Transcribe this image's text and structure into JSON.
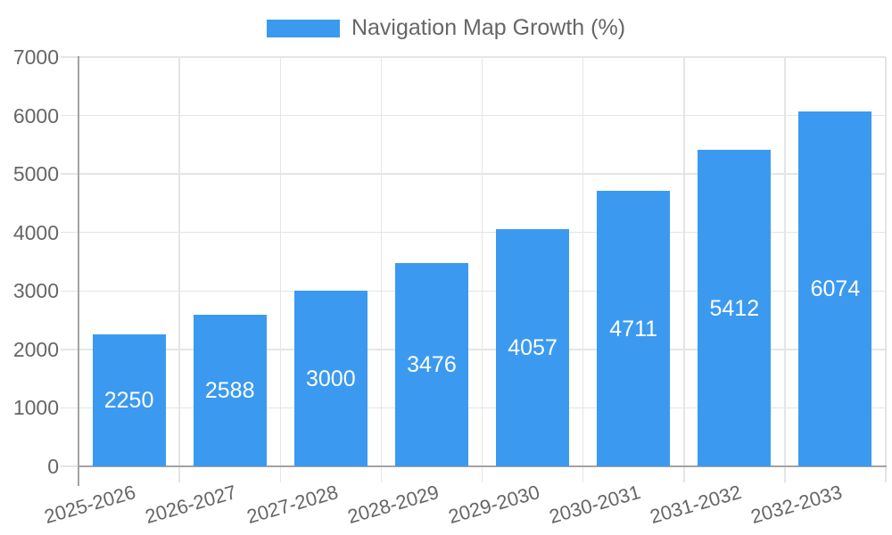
{
  "chart_data": {
    "type": "bar",
    "title": "Navigation Map Growth (%)",
    "categories": [
      "2025-2026",
      "2026-2027",
      "2027-2028",
      "2028-2029",
      "2029-2030",
      "2030-2031",
      "2031-2032",
      "2032-2033"
    ],
    "values": [
      2250,
      2588,
      3000,
      3476,
      4057,
      4711,
      5412,
      6074
    ],
    "xlabel": "",
    "ylabel": "",
    "ylim": [
      0,
      7000
    ],
    "yticks": [
      0,
      1000,
      2000,
      3000,
      4000,
      5000,
      6000,
      7000
    ],
    "grid": true,
    "legend_position": "top",
    "value_labels_position": "inside-center",
    "x_label_rotation_deg": -16,
    "colors": {
      "bar": "#3b9af0",
      "value_label": "#ffffff",
      "text": "#666666",
      "grid": "#e5e5e5",
      "axis": "#a3a3a3"
    }
  }
}
